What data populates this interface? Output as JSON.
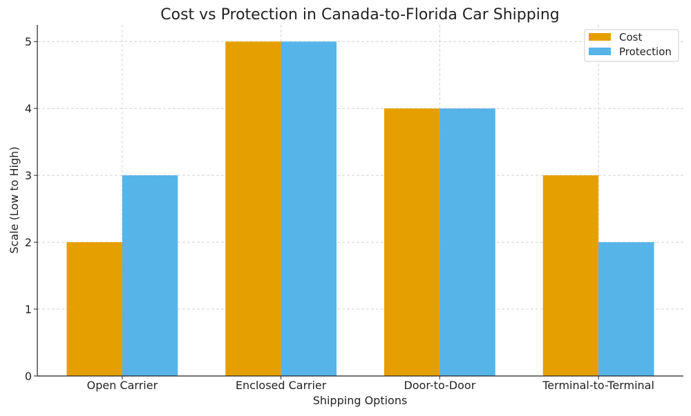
{
  "chart_data": {
    "type": "bar",
    "title": "Cost vs Protection in Canada-to-Florida Car Shipping",
    "xlabel": "Shipping Options",
    "ylabel": "Scale (Low to High)",
    "categories": [
      "Open Carrier",
      "Enclosed Carrier",
      "Door-to-Door",
      "Terminal-to-Terminal"
    ],
    "series": [
      {
        "name": "Cost",
        "values": [
          2,
          5,
          4,
          3
        ],
        "color": "#E69F00"
      },
      {
        "name": "Protection",
        "values": [
          3,
          5,
          4,
          2
        ],
        "color": "#56B4E9"
      }
    ],
    "ylim": [
      0,
      5.25
    ],
    "yticks": [
      0,
      1,
      2,
      3,
      4,
      5
    ],
    "grid": true,
    "legend": "top-right"
  }
}
